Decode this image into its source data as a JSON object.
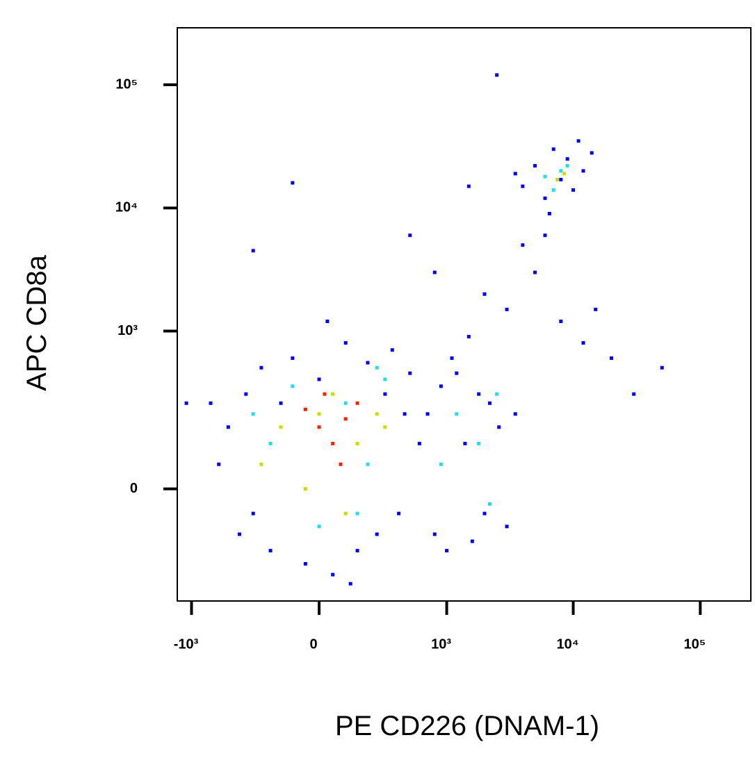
{
  "chart_data": {
    "type": "scatter",
    "x_label": "PE CD226 (DNAM-1)",
    "y_label": "APC  CD8a",
    "scale": "asinh",
    "xlim": [
      -1300,
      250000
    ],
    "ylim": [
      -420,
      290000
    ],
    "xticks": [
      {
        "value": -1000,
        "label": "-10³"
      },
      0,
      {
        "value": 1000,
        "label": "10³"
      },
      {
        "value": 10000,
        "label": "10⁴"
      },
      {
        "value": 100000,
        "label": "10⁵"
      }
    ],
    "yticks": [
      0,
      {
        "value": 1000,
        "label": "10³"
      },
      {
        "value": 10000,
        "label": "10⁴"
      },
      {
        "value": 100000,
        "label": "10⁵"
      }
    ],
    "series": [
      {
        "color": "#0000ff",
        "x": [
          -500,
          -350,
          -300,
          -250,
          -200,
          -150,
          -100,
          -50,
          0,
          50,
          100,
          150,
          200,
          250,
          300,
          350,
          400,
          450,
          500,
          -600,
          -400,
          600,
          -700,
          30,
          120,
          700,
          800,
          900,
          1000,
          1200,
          1400,
          1600,
          1800,
          2000,
          2200,
          2600,
          3000,
          3500,
          1100,
          1500,
          2000,
          3000,
          5000,
          8000,
          12000,
          20000,
          30000,
          15000,
          4000,
          6000,
          -300,
          800,
          500,
          1500,
          2500,
          50000,
          -1100,
          -100,
          4000,
          5000,
          6000,
          7000,
          8000,
          9000,
          10000,
          12000,
          14000,
          3500,
          6500,
          11000
        ],
        "values": [
          150,
          300,
          -50,
          500,
          -150,
          250,
          600,
          -200,
          400,
          -250,
          800,
          -150,
          550,
          -100,
          300,
          700,
          -50,
          200,
          450,
          50,
          -100,
          100,
          250,
          1200,
          -300,
          200,
          -100,
          350,
          -150,
          450,
          100,
          -120,
          300,
          -50,
          250,
          150,
          -80,
          200,
          600,
          900,
          2000,
          1500,
          3000,
          1200,
          800,
          600,
          300,
          1500,
          5000,
          6000,
          4500,
          3000,
          6000,
          15000,
          120000,
          500,
          250,
          16000,
          15000,
          22000,
          12000,
          30000,
          17000,
          25000,
          14000,
          20000,
          28000,
          19000,
          9000,
          35000
        ]
      },
      {
        "color": "#22ddee",
        "x": [
          -200,
          -100,
          0,
          100,
          200,
          300,
          -300,
          150,
          250,
          1200,
          1800,
          2500,
          900,
          2200,
          6000,
          8000,
          7000,
          9000
        ],
        "values": [
          100,
          350,
          -80,
          250,
          50,
          400,
          200,
          -50,
          500,
          200,
          100,
          300,
          50,
          -30,
          18000,
          20000,
          14000,
          22000
        ]
      },
      {
        "color": "#c8e000",
        "x": [
          -150,
          -50,
          50,
          150,
          250,
          -250,
          0,
          100,
          300,
          7500,
          8500
        ],
        "values": [
          150,
          0,
          300,
          100,
          200,
          50,
          200,
          -50,
          150,
          17000,
          19000
        ]
      },
      {
        "color": "#ff2000",
        "x": [
          0,
          50,
          100,
          -50,
          150,
          80,
          20
        ],
        "values": [
          150,
          100,
          180,
          220,
          250,
          50,
          300
        ]
      }
    ]
  }
}
